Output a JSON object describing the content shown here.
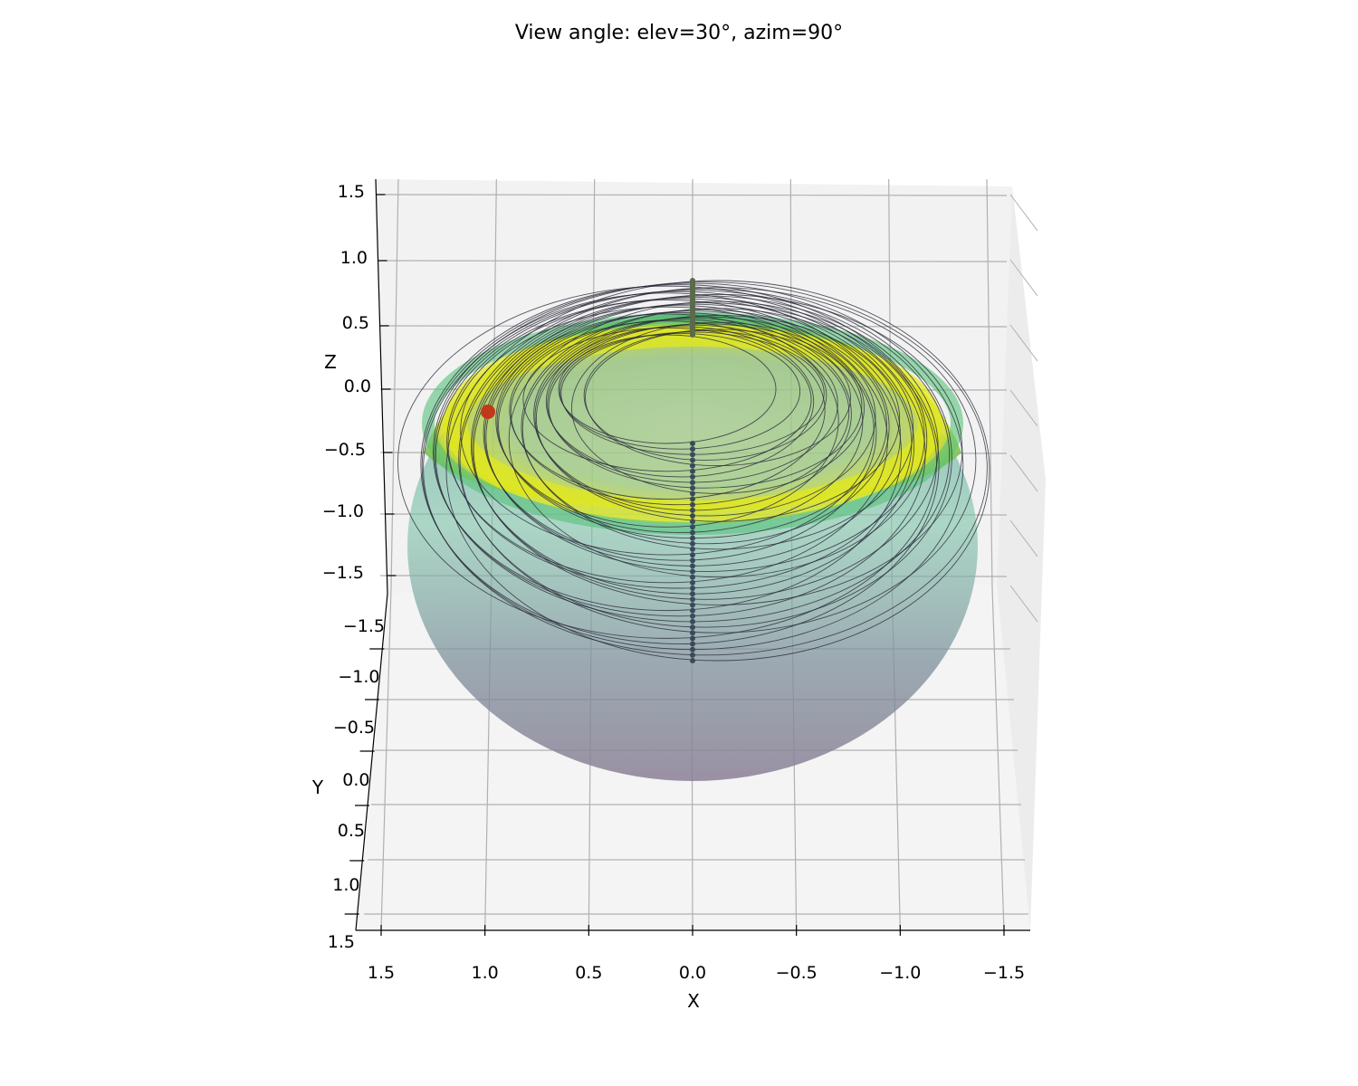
{
  "chart_data": {
    "type": "scatter",
    "title": "View angle: elev=30°, azim=90°",
    "view": {
      "elev": 30,
      "azim": 90
    },
    "xlabel": "X",
    "ylabel": "Y",
    "zlabel": "Z",
    "xlim": [
      -1.5,
      1.5
    ],
    "ylim": [
      -1.5,
      1.5
    ],
    "zlim": [
      -1.5,
      1.5
    ],
    "x_ticks": [
      "1.5",
      "1.0",
      "0.5",
      "0.0",
      "−0.5",
      "−1.0",
      "−1.5"
    ],
    "y_ticks": [
      "−1.5",
      "−1.0",
      "−0.5",
      "0.0",
      "0.5",
      "1.0",
      "1.5"
    ],
    "z_ticks": [
      "1.5",
      "1.0",
      "0.5",
      "0.0",
      "−0.5",
      "−1.0",
      "−1.5"
    ],
    "grid": true,
    "surface": {
      "shape": "sphere",
      "radius": 1.0,
      "colormap": "viridis",
      "alpha": 0.5
    },
    "orbits": {
      "count": 40,
      "color": "#2a2a3a"
    },
    "highlight_point": {
      "color": "#c0391b"
    },
    "colors": {
      "surface_top": "#e2e81e",
      "surface_mid": "#56c17a",
      "surface_bottom": "#868196",
      "orbit": "#2a2a3a",
      "marker": "#c0391b",
      "grid": "#b0b0b0",
      "pane": "#f2f2f2"
    }
  }
}
